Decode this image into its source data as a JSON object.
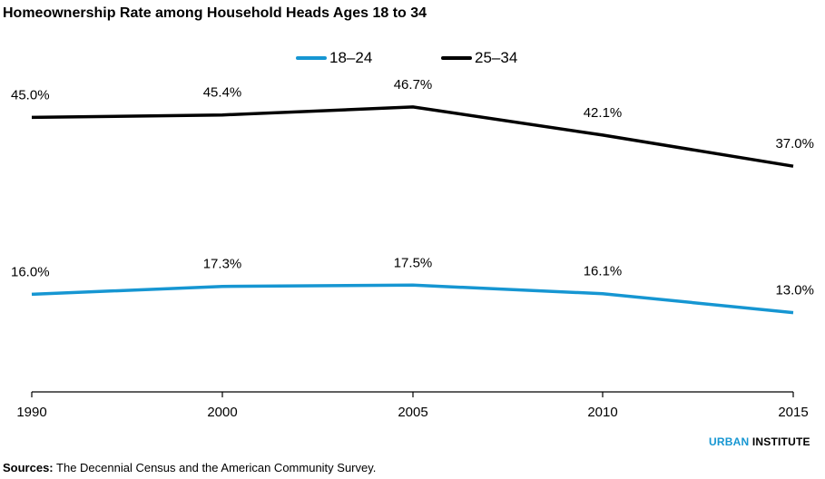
{
  "chart_data": {
    "type": "line",
    "title": "Homeownership Rate among Household Heads Ages 18 to 34",
    "x": [
      "1990",
      "2000",
      "2005",
      "2010",
      "2015"
    ],
    "series": [
      {
        "name": "18–24",
        "color": "#1696d2",
        "values": [
          16.0,
          17.3,
          17.5,
          16.1,
          13.0
        ],
        "labels": [
          "16.0%",
          "17.3%",
          "17.5%",
          "16.1%",
          "13.0%"
        ]
      },
      {
        "name": "25–34",
        "color": "#000000",
        "values": [
          45.0,
          45.4,
          46.7,
          42.1,
          37.0
        ],
        "labels": [
          "45.0%",
          "45.4%",
          "46.7%",
          "42.1%",
          "37.0%"
        ]
      }
    ],
    "ylim": [
      0,
      50
    ],
    "grid": false,
    "legend": "top-center"
  },
  "footer": {
    "sources_label": "Sources:",
    "sources_text": " The Decennial Census and the American Community Survey.",
    "brand_urban": "URBAN",
    "brand_institute": " INSTITUTE"
  }
}
